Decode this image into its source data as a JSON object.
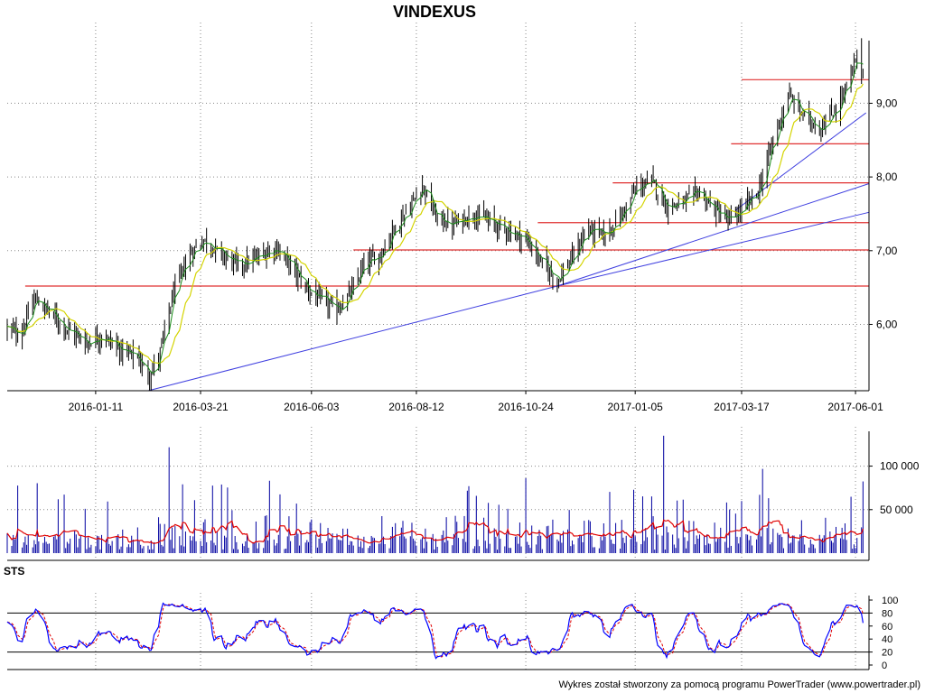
{
  "app": {
    "footer": "Wykres został stworzony za pomocą programu PowerTrader (www.powertrader.pl)"
  },
  "chart_data": [
    {
      "type": "candlestick",
      "title": "VINDEXUS",
      "ylim": [
        5.1,
        9.85
      ],
      "yticks": [
        6,
        7,
        8,
        9
      ],
      "ytick_labels": [
        "6,00",
        "7,00",
        "8,00",
        "9,00"
      ],
      "x_dates": [
        "2016-01-11",
        "2016-03-21",
        "2016-06-03",
        "2016-08-12",
        "2016-10-24",
        "2017-01-05",
        "2017-03-17",
        "2017-06-01"
      ],
      "x_range": [
        "2015-11-13",
        "2017-06-10"
      ],
      "grid": true,
      "price_anchors": [
        {
          "d": "2015-11-13",
          "v": 5.95
        },
        {
          "d": "2015-11-22",
          "v": 5.85
        },
        {
          "d": "2015-12-01",
          "v": 6.35
        },
        {
          "d": "2015-12-12",
          "v": 6.15
        },
        {
          "d": "2015-12-22",
          "v": 5.95
        },
        {
          "d": "2016-01-05",
          "v": 5.75
        },
        {
          "d": "2016-01-15",
          "v": 5.85
        },
        {
          "d": "2016-01-28",
          "v": 5.65
        },
        {
          "d": "2016-02-08",
          "v": 5.55
        },
        {
          "d": "2016-02-15",
          "v": 5.3
        },
        {
          "d": "2016-02-22",
          "v": 5.55
        },
        {
          "d": "2016-03-03",
          "v": 6.45
        },
        {
          "d": "2016-03-14",
          "v": 6.95
        },
        {
          "d": "2016-03-23",
          "v": 7.15
        },
        {
          "d": "2016-04-04",
          "v": 6.95
        },
        {
          "d": "2016-04-15",
          "v": 6.8
        },
        {
          "d": "2016-04-28",
          "v": 6.9
        },
        {
          "d": "2016-05-10",
          "v": 7.05
        },
        {
          "d": "2016-05-20",
          "v": 6.8
        },
        {
          "d": "2016-05-30",
          "v": 6.5
        },
        {
          "d": "2016-06-08",
          "v": 6.35
        },
        {
          "d": "2016-06-20",
          "v": 6.2
        },
        {
          "d": "2016-06-30",
          "v": 6.45
        },
        {
          "d": "2016-07-08",
          "v": 6.8
        },
        {
          "d": "2016-07-19",
          "v": 6.95
        },
        {
          "d": "2016-07-28",
          "v": 7.3
        },
        {
          "d": "2016-08-08",
          "v": 7.6
        },
        {
          "d": "2016-08-16",
          "v": 7.9
        },
        {
          "d": "2016-08-25",
          "v": 7.45
        },
        {
          "d": "2016-09-05",
          "v": 7.35
        },
        {
          "d": "2016-09-19",
          "v": 7.5
        },
        {
          "d": "2016-09-29",
          "v": 7.4
        },
        {
          "d": "2016-10-10",
          "v": 7.3
        },
        {
          "d": "2016-10-24",
          "v": 7.15
        },
        {
          "d": "2016-11-03",
          "v": 6.85
        },
        {
          "d": "2016-11-14",
          "v": 6.6
        },
        {
          "d": "2016-11-24",
          "v": 6.9
        },
        {
          "d": "2016-12-04",
          "v": 7.3
        },
        {
          "d": "2016-12-16",
          "v": 7.2
        },
        {
          "d": "2016-12-27",
          "v": 7.5
        },
        {
          "d": "2017-01-06",
          "v": 7.85
        },
        {
          "d": "2017-01-16",
          "v": 7.95
        },
        {
          "d": "2017-01-26",
          "v": 7.6
        },
        {
          "d": "2017-02-06",
          "v": 7.65
        },
        {
          "d": "2017-02-16",
          "v": 7.8
        },
        {
          "d": "2017-02-27",
          "v": 7.55
        },
        {
          "d": "2017-03-08",
          "v": 7.4
        },
        {
          "d": "2017-03-17",
          "v": 7.55
        },
        {
          "d": "2017-03-28",
          "v": 7.8
        },
        {
          "d": "2017-04-07",
          "v": 8.5
        },
        {
          "d": "2017-04-17",
          "v": 9.1
        },
        {
          "d": "2017-04-27",
          "v": 8.85
        },
        {
          "d": "2017-05-08",
          "v": 8.65
        },
        {
          "d": "2017-05-18",
          "v": 8.9
        },
        {
          "d": "2017-05-28",
          "v": 9.3
        },
        {
          "d": "2017-06-02",
          "v": 9.65
        },
        {
          "d": "2017-06-06",
          "v": 9.4
        }
      ],
      "horizontal_lines": [
        {
          "from": "2015-11-25",
          "to": "2017-06-10",
          "y": 6.52
        },
        {
          "from": "2016-07-01",
          "to": "2017-06-10",
          "y": 7.01
        },
        {
          "from": "2016-11-01",
          "to": "2017-06-10",
          "y": 7.38
        },
        {
          "from": "2016-12-21",
          "to": "2017-06-10",
          "y": 7.92
        },
        {
          "from": "2017-03-10",
          "to": "2017-06-10",
          "y": 8.45
        },
        {
          "from": "2017-03-17",
          "to": "2017-06-10",
          "y": 9.32
        }
      ],
      "trend_lines": [
        {
          "x1": "2016-02-15",
          "y1": 5.1,
          "x2": "2016-11-14",
          "y2": 6.52
        },
        {
          "x1": "2016-11-14",
          "y1": 6.52,
          "x2": "2017-06-10",
          "y2": 7.91
        },
        {
          "x1": "2016-11-14",
          "y1": 6.52,
          "x2": "2017-06-10",
          "y2": 7.52
        },
        {
          "x1": "2017-03-13",
          "y1": 7.55,
          "x2": "2017-06-08",
          "y2": 8.87
        }
      ],
      "colors": {
        "candle": "#000000",
        "ma_fast": "#1a8c1a",
        "ma_slow": "#d4d400",
        "hline": "#e03030",
        "trend": "#4040e0"
      }
    },
    {
      "type": "bar",
      "title": "",
      "ylim": [
        0,
        140000
      ],
      "yticks": [
        50000,
        100000
      ],
      "ytick_labels": [
        "50 000",
        "100 000"
      ],
      "colors": {
        "bar": "#0000a0",
        "avg": "#e00000"
      }
    },
    {
      "type": "line",
      "title": "STS",
      "ylim": [
        0,
        100
      ],
      "yticks": [
        0,
        20,
        40,
        60,
        80,
        100
      ],
      "ytick_labels": [
        "0",
        "20",
        "40",
        "60",
        "80",
        "100"
      ],
      "levels": [
        20,
        80
      ],
      "colors": {
        "k": "#0000ff",
        "d": "#e00000"
      }
    }
  ]
}
